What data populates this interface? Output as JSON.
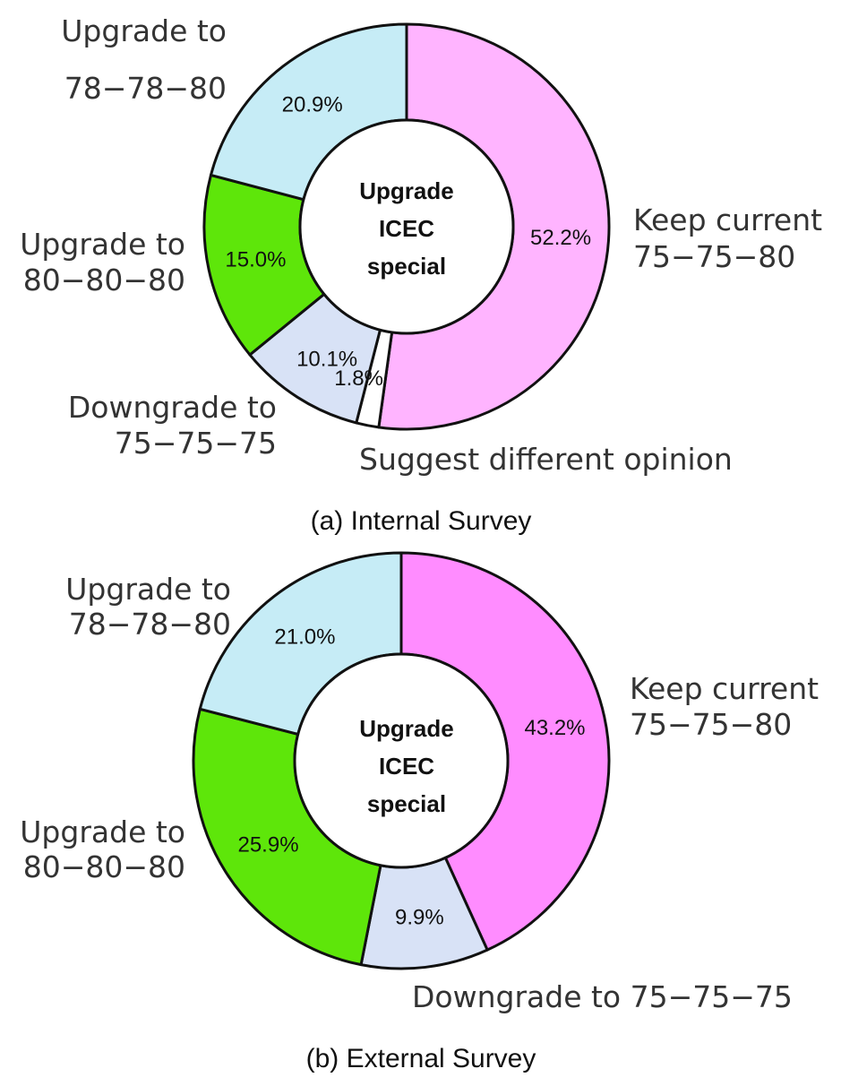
{
  "chart_data": [
    {
      "type": "pie",
      "subtype": "donut",
      "caption": "(a) Internal Survey",
      "center_label": [
        "Upgrade",
        "ICEC",
        "special"
      ],
      "slices": [
        {
          "label": "Keep current 75-75-80",
          "value": 52.2,
          "value_label": "52.2%",
          "color": "#ffb4ff"
        },
        {
          "label": "Suggest different opinion",
          "value": 1.8,
          "value_label": "1.8%",
          "color": "#ffffff"
        },
        {
          "label": "Downgrade to 75-75-75",
          "value": 10.1,
          "value_label": "10.1%",
          "color": "#d8e2f6"
        },
        {
          "label": "Upgrade to 80-80-80",
          "value": 15.0,
          "value_label": "15.0%",
          "color": "#5ee60a"
        },
        {
          "label": "Upgrade to 78-78-80",
          "value": 20.9,
          "value_label": "20.9%",
          "color": "#c6ecf6"
        }
      ],
      "outer_labels": {
        "keep": [
          "Keep current",
          "75−75−80"
        ],
        "different": [
          "Suggest different opinion"
        ],
        "downgrade": [
          "Downgrade to",
          "75−75−75"
        ],
        "upgrade80": [
          "Upgrade to",
          "80−80−80"
        ],
        "upgrade78": [
          "Upgrade to",
          "78−78−80"
        ]
      }
    },
    {
      "type": "pie",
      "subtype": "donut",
      "caption": "(b) External Survey",
      "center_label": [
        "Upgrade",
        "ICEC",
        "special"
      ],
      "slices": [
        {
          "label": "Keep current 75-75-80",
          "value": 43.2,
          "value_label": "43.2%",
          "color": "#ff8cff"
        },
        {
          "label": "Downgrade to 75-75-75",
          "value": 9.9,
          "value_label": "9.9%",
          "color": "#d8e2f6"
        },
        {
          "label": "Upgrade to 80-80-80",
          "value": 25.9,
          "value_label": "25.9%",
          "color": "#5ee60a"
        },
        {
          "label": "Upgrade to 78-78-80",
          "value": 21.0,
          "value_label": "21.0%",
          "color": "#c6ecf6"
        }
      ],
      "outer_labels": {
        "keep": [
          "Keep current",
          "75−75−80"
        ],
        "downgrade": [
          "Downgrade to 75−75−75"
        ],
        "upgrade80": [
          "Upgrade to",
          "80−80−80"
        ],
        "upgrade78": [
          "Upgrade to",
          "78−78−80"
        ]
      }
    }
  ]
}
